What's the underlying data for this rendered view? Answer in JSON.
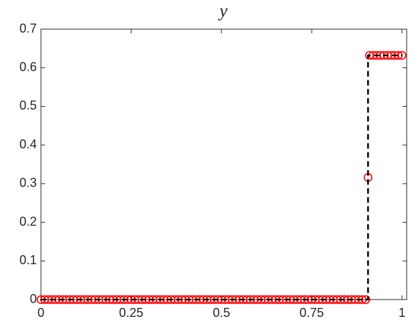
{
  "chart_data": {
    "type": "line",
    "title": "y",
    "xlim": [
      0,
      1.013
    ],
    "ylim": [
      0,
      0.7
    ],
    "xticks": [
      0,
      0.25,
      0.5,
      0.75,
      1
    ],
    "yticks": [
      0,
      0.1,
      0.2,
      0.3,
      0.4,
      0.5,
      0.6,
      0.7
    ],
    "grid": false,
    "series": [
      {
        "style": "markers",
        "color": "#ff0000",
        "x": [
          0,
          0.01,
          0.02,
          0.03,
          0.04,
          0.05,
          0.06,
          0.07,
          0.08,
          0.09,
          0.1,
          0.11,
          0.12,
          0.13,
          0.14,
          0.15,
          0.16,
          0.17,
          0.18,
          0.19,
          0.2,
          0.21,
          0.22,
          0.23,
          0.24,
          0.25,
          0.26,
          0.27,
          0.28,
          0.29,
          0.3,
          0.31,
          0.32,
          0.33,
          0.34,
          0.35,
          0.36,
          0.37,
          0.38,
          0.39,
          0.4,
          0.41,
          0.42,
          0.43,
          0.44,
          0.45,
          0.46,
          0.47,
          0.48,
          0.49,
          0.5,
          0.51,
          0.52,
          0.53,
          0.54,
          0.55,
          0.56,
          0.57,
          0.58,
          0.59,
          0.6,
          0.61,
          0.62,
          0.63,
          0.64,
          0.65,
          0.66,
          0.67,
          0.68,
          0.69,
          0.7,
          0.71,
          0.72,
          0.73,
          0.74,
          0.75,
          0.76,
          0.77,
          0.78,
          0.79,
          0.8,
          0.81,
          0.82,
          0.83,
          0.84,
          0.85,
          0.86,
          0.87,
          0.88,
          0.89,
          0.9,
          0.906,
          0.91,
          0.92,
          0.93,
          0.94,
          0.95,
          0.96,
          0.97,
          0.98,
          0.99,
          1.0
        ],
        "values": [
          0,
          0,
          0,
          0,
          0,
          0,
          0,
          0,
          0,
          0,
          0,
          0,
          0,
          0,
          0,
          0,
          0,
          0,
          0,
          0,
          0,
          0,
          0,
          0,
          0,
          0,
          0,
          0,
          0,
          0,
          0,
          0,
          0,
          0,
          0,
          0,
          0,
          0,
          0,
          0,
          0,
          0,
          0,
          0,
          0,
          0,
          0,
          0,
          0,
          0,
          0,
          0,
          0,
          0,
          0,
          0,
          0,
          0,
          0,
          0,
          0,
          0,
          0,
          0,
          0,
          0,
          0,
          0,
          0,
          0,
          0,
          0,
          0,
          0,
          0,
          0,
          0,
          0,
          0,
          0,
          0,
          0,
          0,
          0,
          0,
          0,
          0,
          0,
          0,
          0,
          0,
          0.316,
          0.632,
          0.632,
          0.632,
          0.632,
          0.632,
          0.632,
          0.632,
          0.632,
          0.632,
          0.632
        ]
      },
      {
        "style": "dashed",
        "color": "#000000",
        "x": [
          0,
          0.906,
          0.906,
          1.0
        ],
        "values": [
          0,
          0,
          0.632,
          0.632
        ]
      }
    ]
  }
}
